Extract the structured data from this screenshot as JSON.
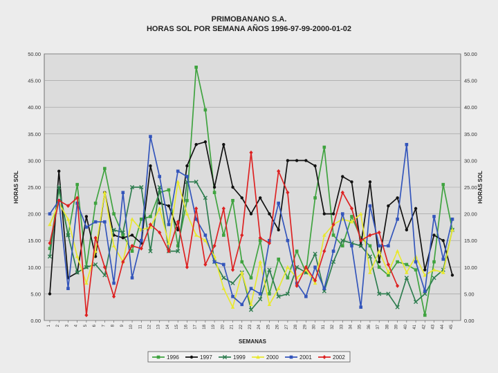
{
  "chart_data": {
    "type": "line",
    "title": "PRIMOBANANO S.A.",
    "subtitle": "HORAS SOL POR SEMANA AÑOS 1996-97-99-2000-01-02",
    "xlabel": "SEMANAS",
    "ylabel": "HORAS SOL",
    "ylabel_right": "HORAS SOL",
    "ylim": [
      0,
      50
    ],
    "yticks": [
      "0.00",
      "5.00",
      "10.00",
      "15.00",
      "20.00",
      "25.00",
      "30.00",
      "35.00",
      "40.00",
      "45.00",
      "50.00"
    ],
    "grid": true,
    "legend_position": "bottom",
    "categories": [
      "1",
      "2",
      "3",
      "4",
      "5",
      "6",
      "7",
      "8",
      "9",
      "10",
      "11",
      "12",
      "13",
      "14",
      "15",
      "16",
      "17",
      "18",
      "19",
      "20",
      "21",
      "22",
      "23",
      "24",
      "25",
      "26",
      "27",
      "28",
      "29",
      "30",
      "31",
      "32",
      "33",
      "34",
      "35",
      "36",
      "37",
      "38",
      "39",
      "40",
      "41",
      "42",
      "43",
      "44",
      "45"
    ],
    "series": [
      {
        "name": "1996",
        "color": "#3fa33f",
        "marker": "square",
        "values": [
          13.5,
          24.5,
          16.0,
          25.5,
          10.0,
          22.0,
          28.5,
          20.0,
          16.0,
          13.0,
          19.0,
          19.5,
          24.0,
          24.5,
          14.0,
          22.5,
          47.5,
          39.5,
          24.0,
          16.0,
          22.5,
          11.0,
          8.0,
          15.0,
          5.0,
          11.5,
          8.0,
          13.0,
          9.0,
          23.0,
          32.5,
          16.0,
          14.0,
          19.5,
          15.5,
          14.0,
          10.0,
          8.5,
          11.0,
          10.5,
          9.5,
          1.0,
          11.0,
          25.5,
          17.0
        ]
      },
      {
        "name": "1997",
        "color": "#111111",
        "marker": "circle",
        "values": [
          5.0,
          28.0,
          8.0,
          9.0,
          19.5,
          12.0,
          24.0,
          16.0,
          15.5,
          16.0,
          14.5,
          29.0,
          22.0,
          21.5,
          17.0,
          29.0,
          33.0,
          33.5,
          25.0,
          33.0,
          25.0,
          23.0,
          20.0,
          23.0,
          20.0,
          17.0,
          30.0,
          30.0,
          30.0,
          29.0,
          20.0,
          20.0,
          27.0,
          26.0,
          14.0,
          26.0,
          11.0,
          21.5,
          23.0,
          17.0,
          21.0,
          9.5,
          16.0,
          15.0,
          8.5
        ]
      },
      {
        "name": "1999",
        "color": "#2e7d4f",
        "marker": "x",
        "values": [
          12.0,
          25.0,
          16.0,
          9.0,
          10.0,
          10.5,
          8.5,
          17.0,
          16.5,
          25.0,
          25.0,
          13.0,
          25.0,
          13.0,
          13.0,
          26.0,
          26.0,
          23.0,
          11.0,
          8.0,
          7.0,
          9.0,
          2.0,
          4.0,
          9.5,
          4.5,
          5.0,
          10.0,
          9.0,
          12.5,
          5.5,
          11.0,
          15.0,
          14.5,
          14.0,
          12.0,
          5.0,
          5.0,
          2.5,
          8.0,
          3.5,
          5.0,
          8.0,
          9.5,
          17.0
        ]
      },
      {
        "name": "2000",
        "color": "#e8e830",
        "marker": "triangle",
        "values": [
          18.0,
          22.0,
          19.0,
          12.0,
          7.0,
          13.0,
          24.0,
          14.0,
          11.0,
          19.0,
          17.0,
          17.5,
          21.0,
          14.5,
          26.0,
          20.0,
          16.0,
          15.0,
          12.0,
          6.0,
          2.5,
          9.0,
          3.0,
          11.0,
          3.0,
          6.0,
          10.0,
          8.0,
          9.5,
          7.0,
          16.0,
          18.0,
          19.0,
          18.5,
          20.0,
          9.0,
          13.0,
          9.0,
          13.0,
          9.0,
          12.0,
          8.5,
          9.5,
          9.0,
          17.0
        ]
      },
      {
        "name": "2001",
        "color": "#3355bb",
        "marker": "square",
        "values": [
          20.0,
          22.5,
          6.0,
          22.0,
          17.5,
          18.5,
          18.5,
          7.0,
          24.0,
          8.0,
          15.0,
          34.5,
          27.0,
          18.0,
          28.0,
          27.0,
          19.0,
          16.0,
          11.0,
          10.5,
          4.5,
          3.0,
          6.0,
          5.0,
          15.0,
          22.0,
          15.0,
          7.0,
          4.5,
          10.0,
          6.0,
          13.0,
          20.0,
          14.0,
          2.5,
          21.5,
          14.0,
          14.0,
          19.0,
          33.0,
          11.0,
          5.5,
          19.5,
          11.5,
          19.0
        ]
      },
      {
        "name": "2002",
        "color": "#dd2222",
        "marker": "diamond",
        "values": [
          14.5,
          22.5,
          21.5,
          23.0,
          1.0,
          15.5,
          10.0,
          4.5,
          11.0,
          14.0,
          13.5,
          18.0,
          16.5,
          13.0,
          18.5,
          10.0,
          21.0,
          10.5,
          14.0,
          21.0,
          9.5,
          16.0,
          31.5,
          15.5,
          14.5,
          28.0,
          24.0,
          6.5,
          10.0,
          7.5,
          13.0,
          18.0,
          24.0,
          21.0,
          15.0,
          16.0,
          16.5,
          10.5,
          6.5,
          null,
          null,
          null,
          null,
          null,
          null
        ]
      }
    ]
  }
}
